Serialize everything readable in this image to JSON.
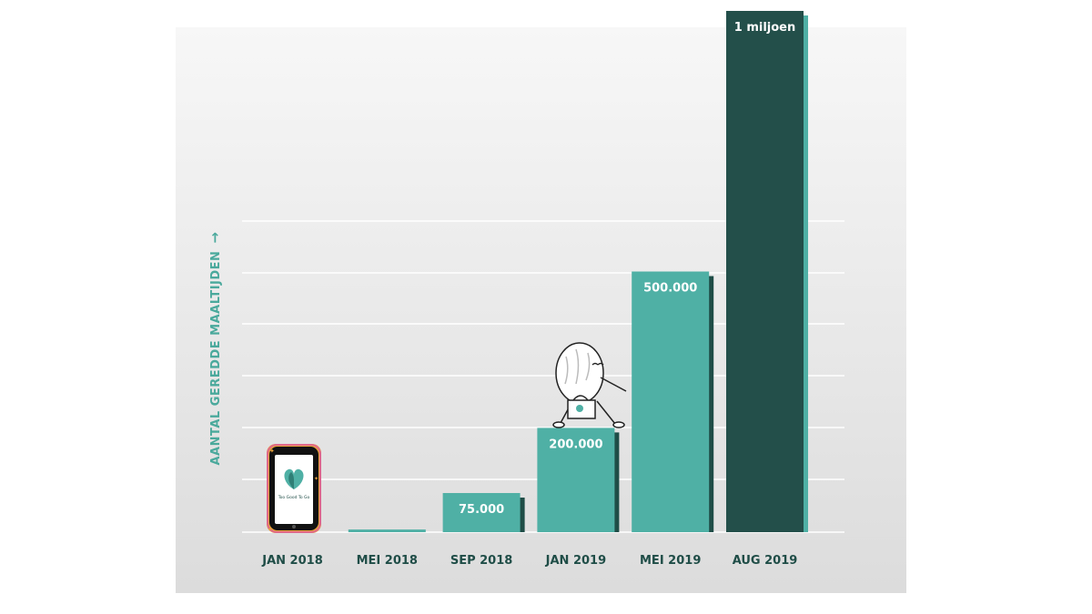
{
  "chart_data": {
    "type": "bar",
    "title": "",
    "xlabel": "",
    "ylabel": "AANTAL GEREDDE MAALTIJDEN",
    "categories": [
      "JAN 2018",
      "MEI 2018",
      "SEP 2018",
      "JAN 2019",
      "MEI 2019",
      "AUG 2019"
    ],
    "values": [
      0,
      5000,
      75000,
      200000,
      500000,
      1000000
    ],
    "data_labels": [
      "",
      "",
      "75.000",
      "200.000",
      "500.000",
      "1 miljoen"
    ],
    "grid": true,
    "colors": {
      "bar": "#4fb0a5",
      "bar_shadow": "#1f4d47",
      "bar_highlight": "#234f4a",
      "highlight_shadow": "#4fb0a5",
      "label": "#ffffff",
      "category_label": "#1f4d47",
      "axis_label": "#4aa99c",
      "grid": "#ffffff"
    }
  },
  "illustrations": {
    "phone_app_name": "Too Good To Go"
  }
}
